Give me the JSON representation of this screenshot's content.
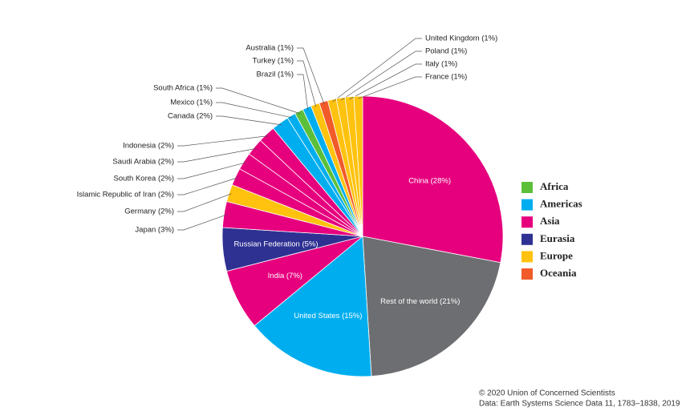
{
  "chart_data": {
    "type": "pie",
    "labels": [
      "China (28%)",
      "Rest of the world (21%)",
      "United States (15%)",
      "India (7%)",
      "Russian Federation (5%)",
      "Japan (3%)",
      "Germany (2%)",
      "Islamic Republic of Iran (2%)",
      "South Korea (2%)",
      "Saudi Arabia (2%)",
      "Indonesia (2%)",
      "Canada (2%)",
      "Mexico (1%)",
      "South Africa (1%)",
      "Brazil (1%)",
      "Turkey (1%)",
      "Australia (1%)",
      "United Kingdom (1%)",
      "Poland (1%)",
      "Italy (1%)",
      "France (1%)"
    ],
    "values": [
      28,
      21,
      15,
      7,
      5,
      3,
      2,
      2,
      2,
      2,
      2,
      2,
      1,
      1,
      1,
      1,
      1,
      1,
      1,
      1,
      1
    ],
    "colors": [
      "#e6007e",
      "#6d6e71",
      "#00aeef",
      "#e6007e",
      "#2e3192",
      "#e6007e",
      "#ffc20e",
      "#e6007e",
      "#e6007e",
      "#e6007e",
      "#e6007e",
      "#00aeef",
      "#00aeef",
      "#5bbf3a",
      "#00aeef",
      "#ffc20e",
      "#f15a29",
      "#ffc20e",
      "#ffc20e",
      "#ffc20e",
      "#ffc20e"
    ],
    "legend": [
      {
        "name": "Africa",
        "color": "#5bbf3a"
      },
      {
        "name": "Americas",
        "color": "#00aeef"
      },
      {
        "name": "Asia",
        "color": "#e6007e"
      },
      {
        "name": "Eurasia",
        "color": "#2e3192"
      },
      {
        "name": "Europe",
        "color": "#ffc20e"
      },
      {
        "name": "Oceania",
        "color": "#f15a29"
      }
    ],
    "footer": [
      "© 2020 Union of Concerned Scientists",
      "Data: Earth Systems Science Data 11, 1783–1838, 2019"
    ]
  }
}
